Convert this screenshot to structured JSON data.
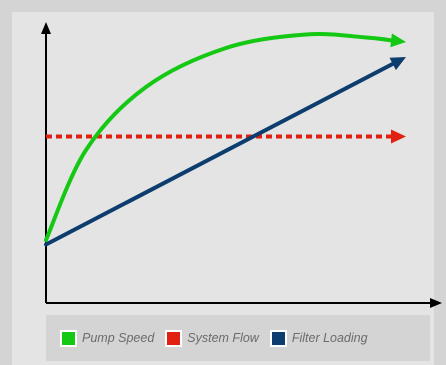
{
  "chart_data": {
    "type": "line",
    "title": "",
    "xlabel": "",
    "ylabel": "",
    "xlim": [
      0,
      100
    ],
    "ylim": [
      0,
      100
    ],
    "grid": false,
    "legend_position": "bottom",
    "series": [
      {
        "name": "Pump Speed",
        "color": "#14c814",
        "style": "solid-curve",
        "points": [
          [
            0,
            21
          ],
          [
            10,
            51
          ],
          [
            25,
            72
          ],
          [
            45,
            85
          ],
          [
            65,
            89.5
          ],
          [
            80,
            88.5
          ],
          [
            90,
            87
          ]
        ]
      },
      {
        "name": "System Flow",
        "color": "#e02010",
        "style": "dashed",
        "points": [
          [
            0,
            55.5
          ],
          [
            90,
            55.5
          ]
        ]
      },
      {
        "name": "Filter Loading",
        "color": "#0d3d6e",
        "style": "solid",
        "points": [
          [
            0,
            19.5
          ],
          [
            90,
            82
          ]
        ]
      }
    ]
  },
  "legend": {
    "items": [
      {
        "label": "Pump Speed",
        "color": "#14c814"
      },
      {
        "label": "System Flow",
        "color": "#e02010"
      },
      {
        "label": "Filter Loading",
        "color": "#0d3d6e"
      }
    ]
  }
}
